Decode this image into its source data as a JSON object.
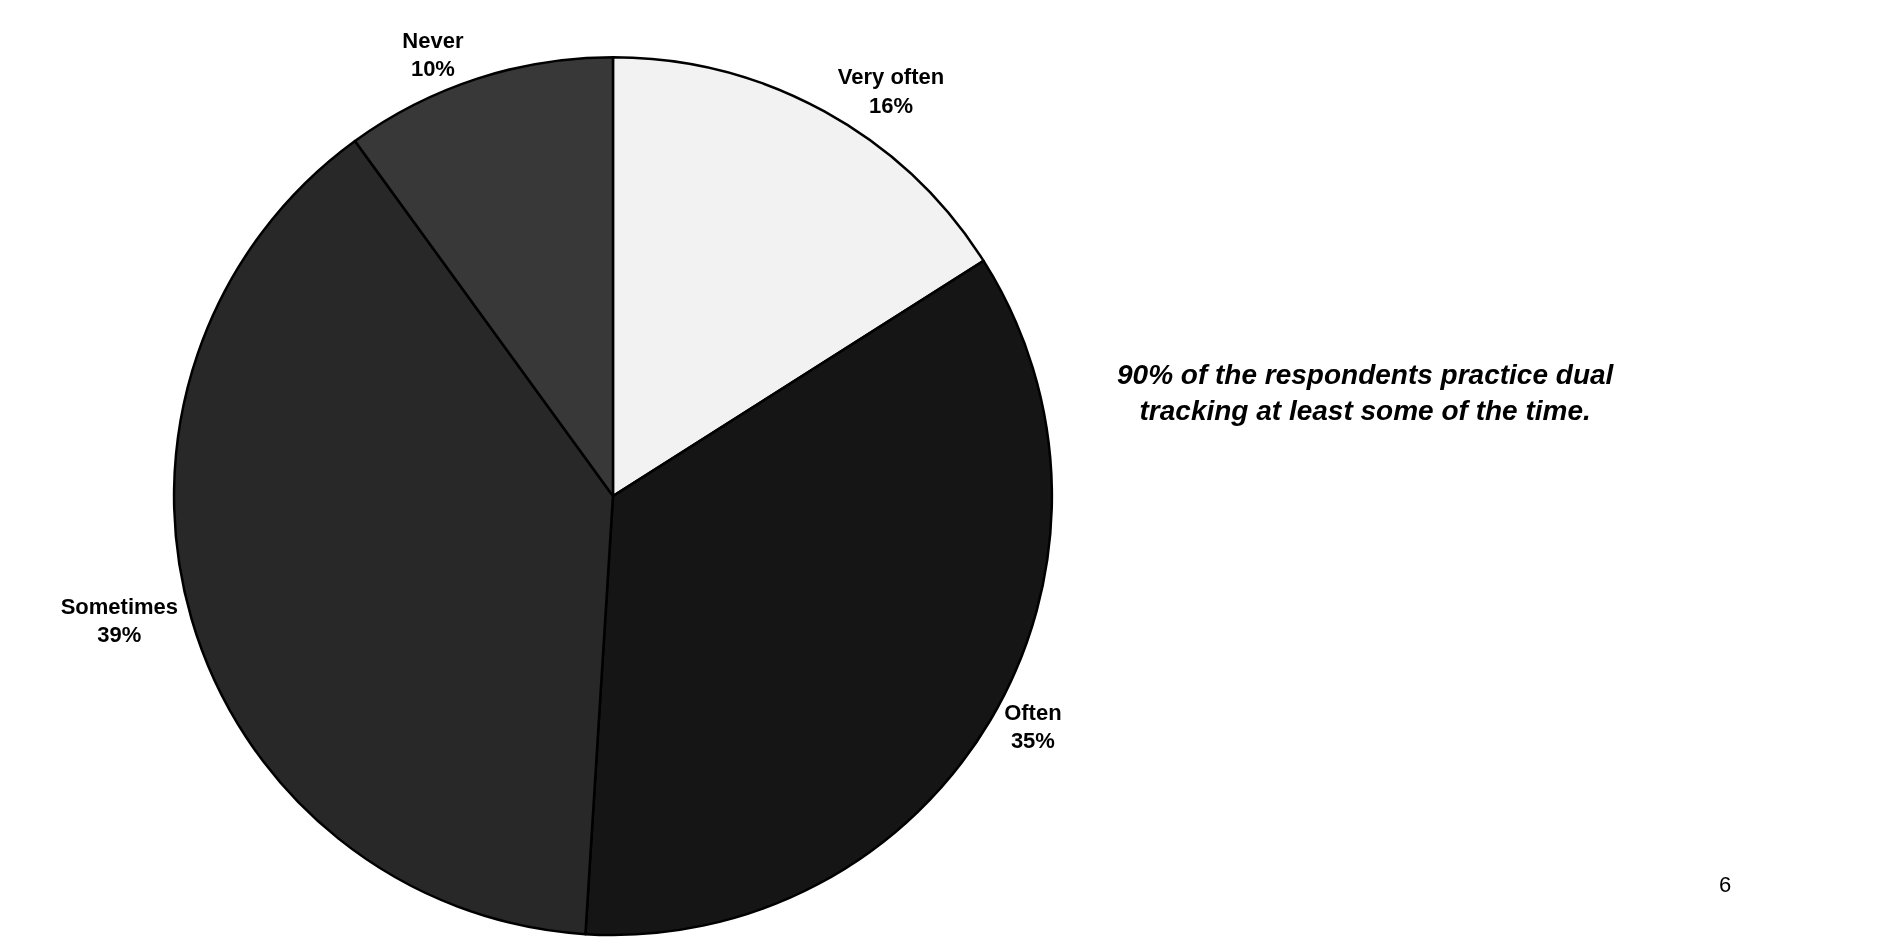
{
  "chart_data": {
    "type": "pie",
    "categories": [
      "Very often",
      "Often",
      "Sometimes",
      "Never"
    ],
    "values": [
      16,
      35,
      39,
      10
    ],
    "colors": [
      "#f2f2f2",
      "#151515",
      "#282828",
      "#383838"
    ],
    "value_labels": [
      "16%",
      "35%",
      "39%",
      "10%"
    ],
    "legend": false,
    "annotations": [
      "90% of the respondents practice dual tracking at least some of the time.",
      "6"
    ]
  }
}
